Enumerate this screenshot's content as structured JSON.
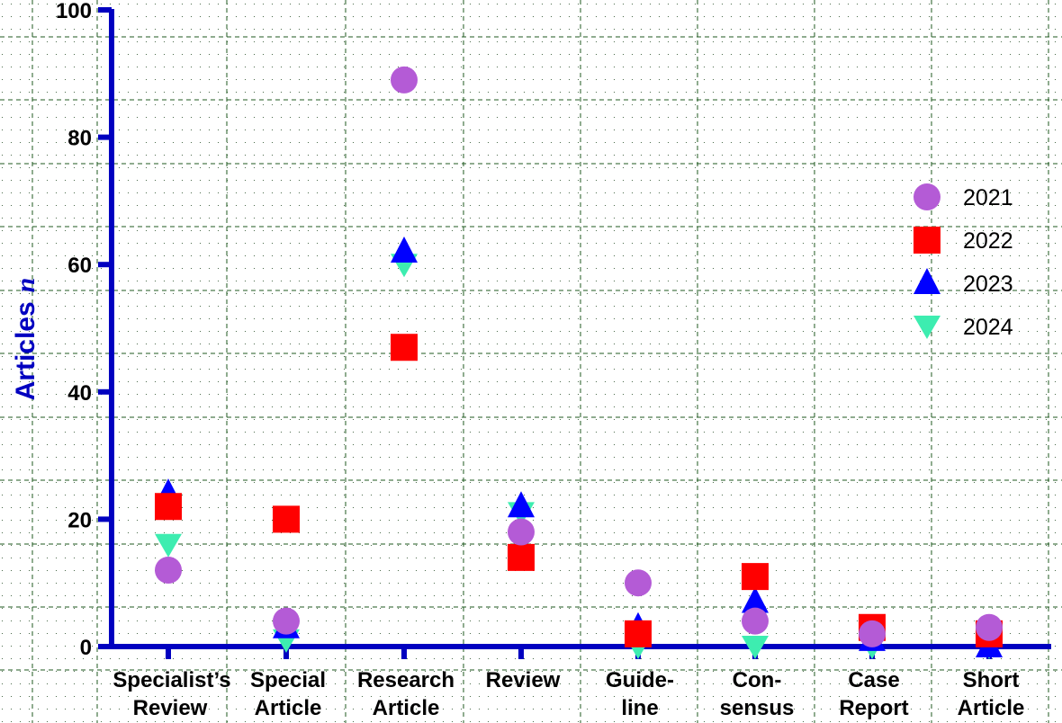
{
  "chart_data": {
    "type": "scatter",
    "title": "",
    "xlabel": "",
    "ylabel": "Articles",
    "ylabel_italic_suffix": "n",
    "ylim": [
      0,
      100
    ],
    "yticks": [
      0,
      20,
      40,
      60,
      80,
      100
    ],
    "grid": true,
    "legend_position": "right",
    "categories": [
      [
        "Specialist’s",
        "Review"
      ],
      [
        "Special",
        "Article"
      ],
      [
        "Research",
        "Article"
      ],
      [
        "Review"
      ],
      [
        "Guide-",
        "line"
      ],
      [
        "Con-",
        "sensus"
      ],
      [
        "Case",
        "Report"
      ],
      [
        "Short",
        "Article"
      ]
    ],
    "series": [
      {
        "name": "2021",
        "marker": "circle",
        "color": "#b45bd6",
        "values": [
          12,
          4,
          89,
          18,
          10,
          4,
          2,
          3
        ]
      },
      {
        "name": "2022",
        "marker": "square",
        "color": "#ff0000",
        "values": [
          22,
          20,
          47,
          14,
          2,
          11,
          3,
          2
        ]
      },
      {
        "name": "2023",
        "marker": "triangle-up",
        "color": "#0000ff",
        "values": [
          24,
          3,
          62,
          22,
          3,
          7,
          1,
          0
        ]
      },
      {
        "name": "2024",
        "marker": "triangle-down",
        "color": "#3dedb0",
        "values": [
          16,
          1,
          60,
          21,
          0,
          0,
          0,
          0
        ]
      }
    ]
  },
  "style": {
    "axis_color": "#0000c0",
    "grid_color": "#1f5a1f"
  }
}
